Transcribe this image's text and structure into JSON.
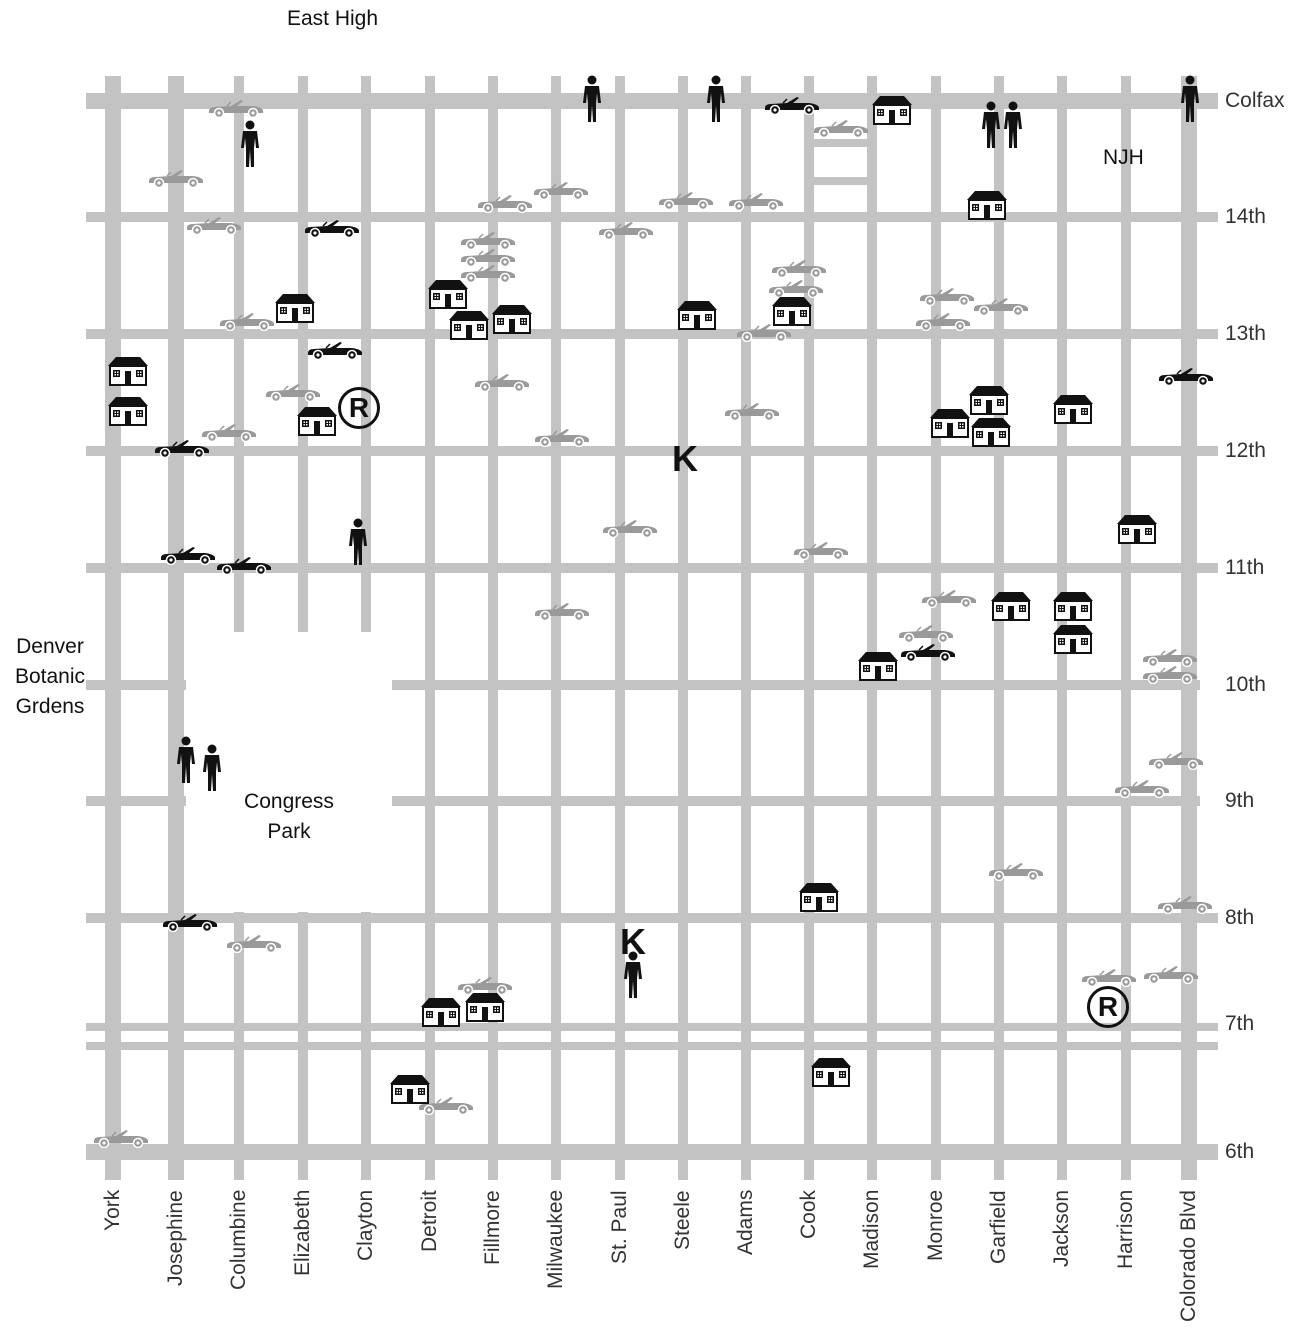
{
  "title": "East High",
  "places": {
    "njh": "NJH",
    "botanic": [
      "Denver",
      "Botanic",
      "Grdens"
    ],
    "congress": [
      "Congress",
      "Park"
    ]
  },
  "avenues": [
    "Colfax",
    "14th",
    "13th",
    "12th",
    "11th",
    "10th",
    "9th",
    "8th",
    "7th",
    "6th"
  ],
  "streets": [
    "York",
    "Josephine",
    "Columbine",
    "Elizabeth",
    "Clayton",
    "Detroit",
    "Fillmore",
    "Milwaukee",
    "St. Paul",
    "Steele",
    "Adams",
    "Cook",
    "Madison",
    "Monroe",
    "Garfield",
    "Jackson",
    "Harrison",
    "Colorado Blvd"
  ],
  "markers": {
    "k": "K",
    "r": "R"
  },
  "colors": {
    "street": "#c3c3c3",
    "car_gray": "#9a9a9a",
    "car_black": "#111111",
    "icon": "#111111"
  },
  "legend_icons": [
    "house-icon",
    "car-icon",
    "person-icon"
  ]
}
